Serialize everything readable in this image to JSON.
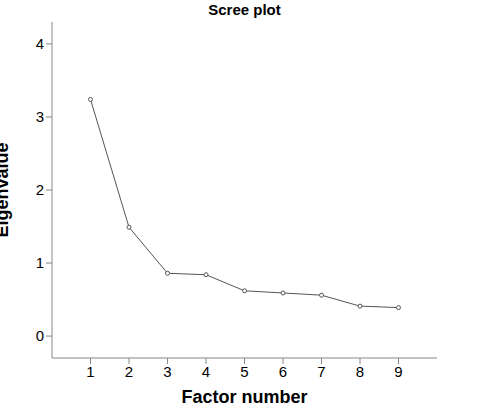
{
  "chart_data": {
    "type": "line",
    "title": "Scree plot",
    "x_label": "Factor number",
    "y_label": "Eigenvalue",
    "x": [
      1,
      2,
      3,
      4,
      5,
      6,
      7,
      8,
      9
    ],
    "values": [
      3.24,
      1.49,
      0.86,
      0.84,
      0.62,
      0.59,
      0.56,
      0.41,
      0.39
    ],
    "color": "#555555",
    "marker": "circle",
    "xlim": [
      0,
      10
    ],
    "xticks": [
      1,
      2,
      3,
      4,
      5,
      6,
      7,
      8,
      9
    ],
    "ylim": [
      -0.3,
      4.3
    ],
    "yticks": [
      0,
      1,
      2,
      3,
      4
    ],
    "grid": false
  }
}
